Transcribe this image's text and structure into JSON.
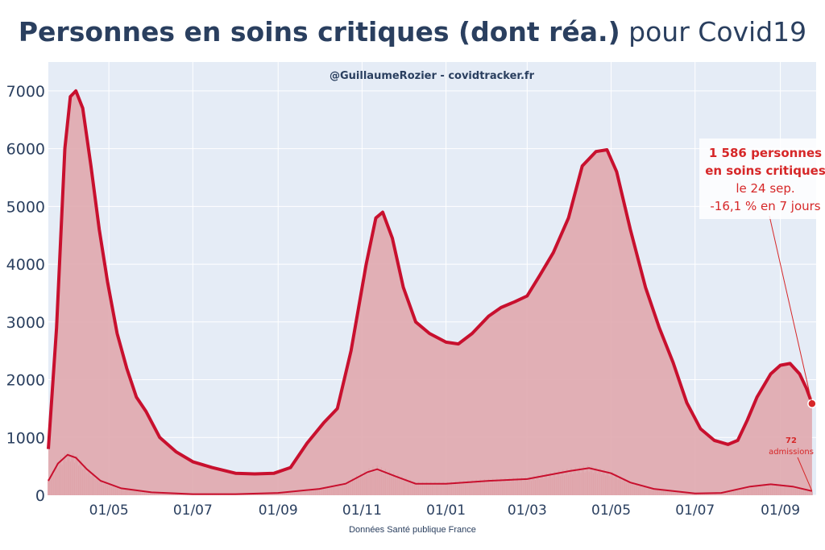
{
  "title_bold": "Personnes en soins critiques (dont réa.)",
  "title_normal": " pour Covid19",
  "subtitle": "@GuillaumeRozier - covidtracker.fr",
  "source": "Données Santé publique France",
  "colors": {
    "line": "#c8102e",
    "fill": "#e0a8ae",
    "bars": "#d2737d",
    "plot_bg": "#e5ecf6",
    "text": "#2a3f5f",
    "annotation": "#d62728"
  },
  "annotation": {
    "line1": "1 586 personnes",
    "line2": "en soins critiques",
    "line3": "le 24 sep.",
    "line4": "-16,1 % en 7 jours"
  },
  "admissions_annotation": {
    "value": "72",
    "label": "admissions"
  },
  "chart_data": {
    "type": "area",
    "x_unit": "date",
    "x_range": [
      "2020-03-18",
      "2021-09-27"
    ],
    "ylim": [
      0,
      7500
    ],
    "yticks": [
      0,
      1000,
      2000,
      3000,
      4000,
      5000,
      6000,
      7000
    ],
    "xtick_labels": [
      {
        "date": "2020-05-01",
        "label": "01/05"
      },
      {
        "date": "2020-07-01",
        "label": "01/07"
      },
      {
        "date": "2020-09-01",
        "label": "01/09"
      },
      {
        "date": "2020-11-01",
        "label": "01/11"
      },
      {
        "date": "2021-01-01",
        "label": "01/01"
      },
      {
        "date": "2021-03-01",
        "label": "01/03"
      },
      {
        "date": "2021-05-01",
        "label": "01/05"
      },
      {
        "date": "2021-07-01",
        "label": "01/07"
      },
      {
        "date": "2021-09-01",
        "label": "01/09"
      }
    ],
    "grid": true,
    "series": [
      {
        "kind": "area-line",
        "points": [
          [
            "2020-03-18",
            800
          ],
          [
            "2020-03-24",
            2900
          ],
          [
            "2020-03-30",
            6000
          ],
          [
            "2020-04-03",
            6900
          ],
          [
            "2020-04-07",
            7000
          ],
          [
            "2020-04-12",
            6700
          ],
          [
            "2020-04-18",
            5700
          ],
          [
            "2020-04-24",
            4600
          ],
          [
            "2020-04-30",
            3700
          ],
          [
            "2020-05-07",
            2800
          ],
          [
            "2020-05-14",
            2200
          ],
          [
            "2020-05-21",
            1700
          ],
          [
            "2020-05-28",
            1450
          ],
          [
            "2020-06-07",
            1000
          ],
          [
            "2020-06-19",
            750
          ],
          [
            "2020-07-01",
            580
          ],
          [
            "2020-07-15",
            480
          ],
          [
            "2020-08-01",
            380
          ],
          [
            "2020-08-15",
            370
          ],
          [
            "2020-08-29",
            380
          ],
          [
            "2020-09-10",
            480
          ],
          [
            "2020-09-22",
            900
          ],
          [
            "2020-10-04",
            1250
          ],
          [
            "2020-10-14",
            1500
          ],
          [
            "2020-10-24",
            2500
          ],
          [
            "2020-11-04",
            4000
          ],
          [
            "2020-11-11",
            4800
          ],
          [
            "2020-11-16",
            4900
          ],
          [
            "2020-11-23",
            4450
          ],
          [
            "2020-12-01",
            3600
          ],
          [
            "2020-12-10",
            3000
          ],
          [
            "2020-12-20",
            2800
          ],
          [
            "2021-01-01",
            2650
          ],
          [
            "2021-01-10",
            2620
          ],
          [
            "2021-01-20",
            2800
          ],
          [
            "2021-02-01",
            3100
          ],
          [
            "2021-02-10",
            3250
          ],
          [
            "2021-02-20",
            3350
          ],
          [
            "2021-03-01",
            3450
          ],
          [
            "2021-03-10",
            3800
          ],
          [
            "2021-03-20",
            4200
          ],
          [
            "2021-03-31",
            4800
          ],
          [
            "2021-04-10",
            5700
          ],
          [
            "2021-04-20",
            5950
          ],
          [
            "2021-04-28",
            5980
          ],
          [
            "2021-05-05",
            5600
          ],
          [
            "2021-05-15",
            4600
          ],
          [
            "2021-05-26",
            3600
          ],
          [
            "2021-06-05",
            2900
          ],
          [
            "2021-06-15",
            2300
          ],
          [
            "2021-06-25",
            1600
          ],
          [
            "2021-07-05",
            1150
          ],
          [
            "2021-07-15",
            950
          ],
          [
            "2021-07-25",
            880
          ],
          [
            "2021-08-01",
            950
          ],
          [
            "2021-08-08",
            1300
          ],
          [
            "2021-08-15",
            1700
          ],
          [
            "2021-08-25",
            2100
          ],
          [
            "2021-09-01",
            2250
          ],
          [
            "2021-09-08",
            2280
          ],
          [
            "2021-09-15",
            2100
          ],
          [
            "2021-09-20",
            1850
          ],
          [
            "2021-09-24",
            1586
          ]
        ]
      },
      {
        "kind": "admissions-line",
        "points": [
          [
            "2020-03-18",
            250
          ],
          [
            "2020-03-25",
            550
          ],
          [
            "2020-04-01",
            700
          ],
          [
            "2020-04-07",
            650
          ],
          [
            "2020-04-15",
            450
          ],
          [
            "2020-04-25",
            250
          ],
          [
            "2020-05-10",
            120
          ],
          [
            "2020-06-01",
            50
          ],
          [
            "2020-07-01",
            20
          ],
          [
            "2020-08-01",
            20
          ],
          [
            "2020-09-01",
            40
          ],
          [
            "2020-10-01",
            110
          ],
          [
            "2020-10-20",
            200
          ],
          [
            "2020-11-05",
            400
          ],
          [
            "2020-11-12",
            450
          ],
          [
            "2020-11-25",
            330
          ],
          [
            "2020-12-10",
            200
          ],
          [
            "2021-01-01",
            200
          ],
          [
            "2021-02-01",
            250
          ],
          [
            "2021-03-01",
            280
          ],
          [
            "2021-04-01",
            420
          ],
          [
            "2021-04-15",
            470
          ],
          [
            "2021-05-01",
            380
          ],
          [
            "2021-05-15",
            220
          ],
          [
            "2021-06-01",
            110
          ],
          [
            "2021-07-01",
            30
          ],
          [
            "2021-07-20",
            40
          ],
          [
            "2021-08-10",
            150
          ],
          [
            "2021-08-25",
            190
          ],
          [
            "2021-09-10",
            150
          ],
          [
            "2021-09-24",
            72
          ]
        ]
      }
    ]
  }
}
